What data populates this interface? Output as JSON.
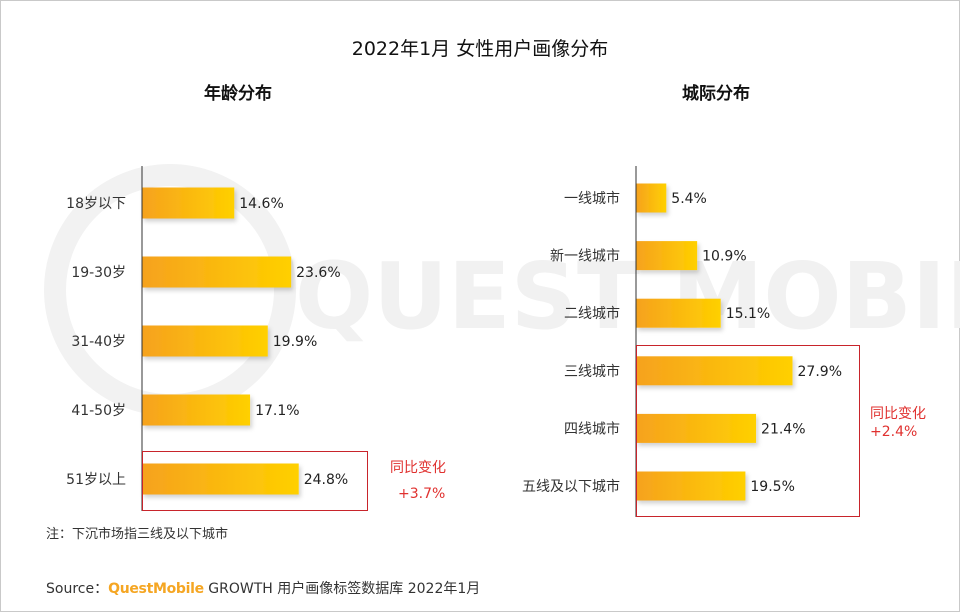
{
  "title": "2022年1月 女性用户画像分布",
  "colors": {
    "bar_start": "#F6A21E",
    "bar_end": "#FFD000",
    "highlight": "#C8242B",
    "change_text": "#E0312F",
    "brand": "#F5A623"
  },
  "watermark": "QUEST MOBILE",
  "chart_data": [
    {
      "type": "bar",
      "orientation": "horizontal",
      "title": "年龄分布",
      "categories": [
        "18岁以下",
        "19-30岁",
        "31-40岁",
        "41-50岁",
        "51岁以上"
      ],
      "values": [
        14.6,
        23.6,
        19.9,
        17.1,
        24.8
      ],
      "value_labels": [
        "14.6%",
        "23.6%",
        "19.9%",
        "17.1%",
        "24.8%"
      ],
      "unit": "%",
      "highlight": {
        "categories": [
          "51岁以上"
        ],
        "label": "同比变化",
        "change": "+3.7%"
      }
    },
    {
      "type": "bar",
      "orientation": "horizontal",
      "title": "城际分布",
      "categories": [
        "一线城市",
        "新一线城市",
        "二线城市",
        "三线城市",
        "四线城市",
        "五线及以下城市"
      ],
      "values": [
        5.4,
        10.9,
        15.1,
        27.9,
        21.4,
        19.5
      ],
      "value_labels": [
        "5.4%",
        "10.9%",
        "15.1%",
        "27.9%",
        "21.4%",
        "19.5%"
      ],
      "unit": "%",
      "highlight": {
        "categories": [
          "三线城市",
          "四线城市",
          "五线及以下城市"
        ],
        "label": "同比变化",
        "change": "+2.4%"
      }
    }
  ],
  "note": "注：下沉市场指三线及以下城市",
  "source": {
    "prefix": "Source：",
    "brand": "QuestMobile",
    "text": " GROWTH 用户画像标签数据库 2022年1月"
  }
}
